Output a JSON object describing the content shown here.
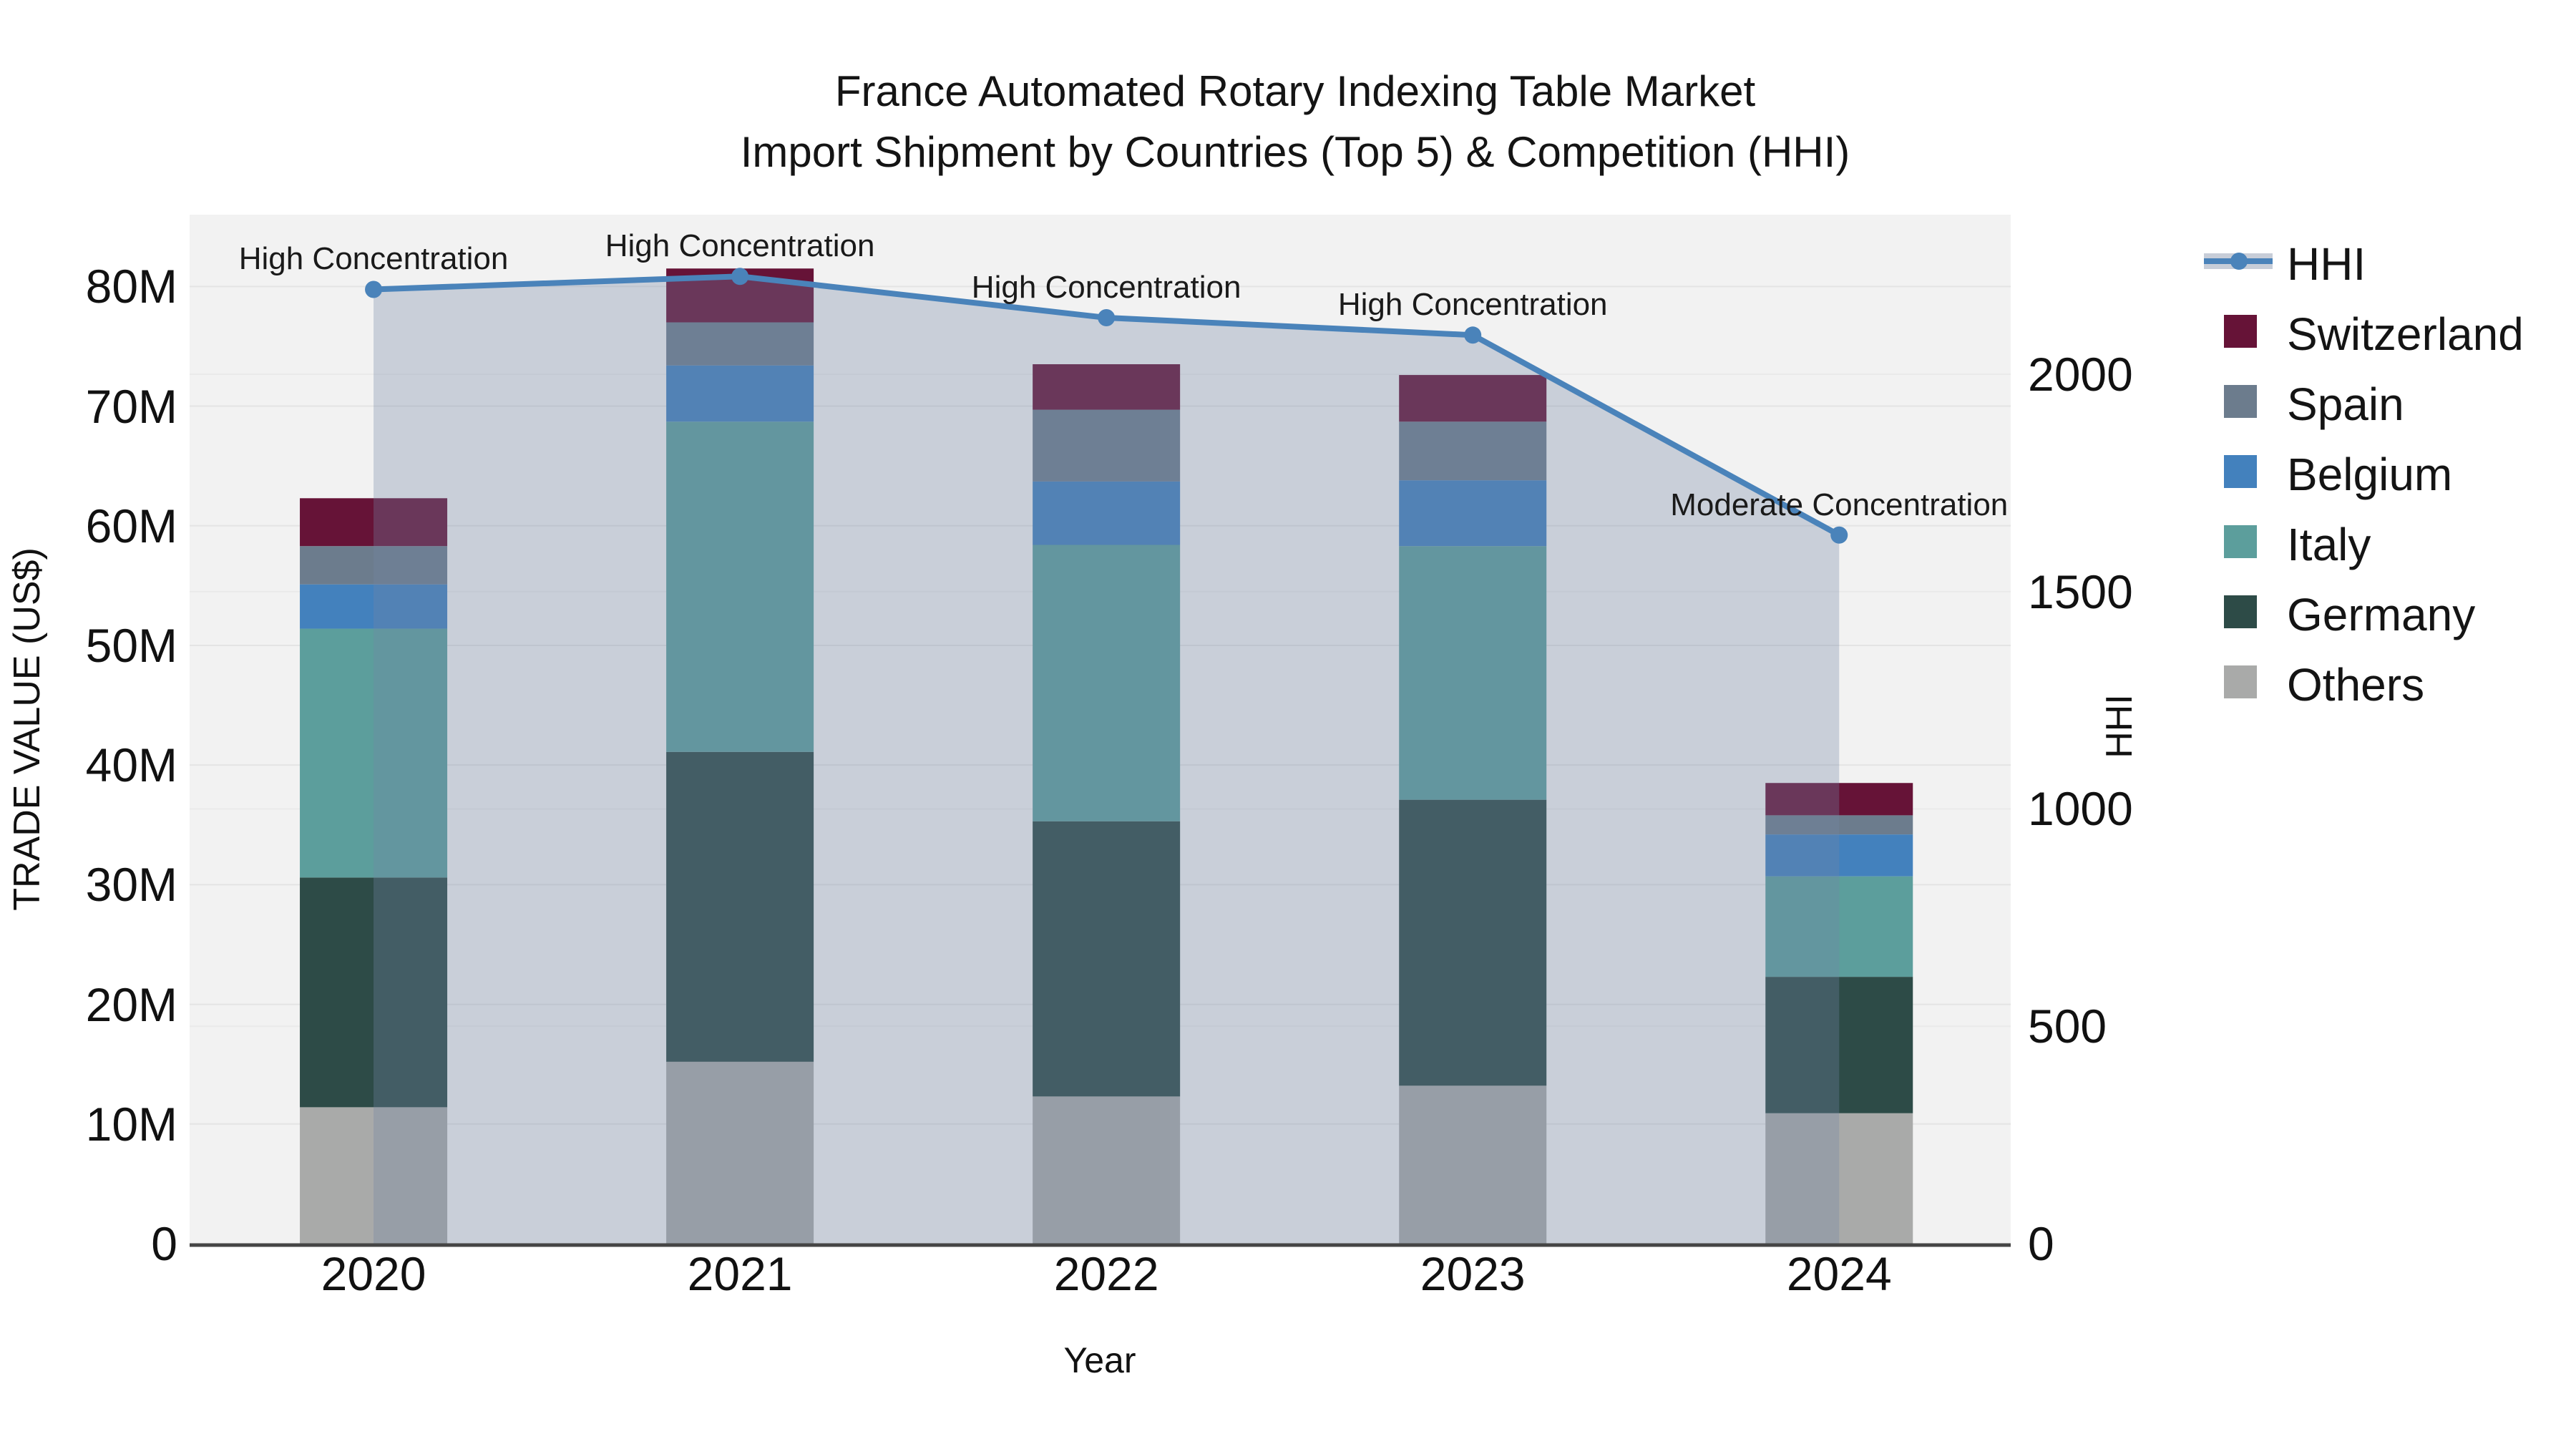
{
  "title": {
    "line1": "France Automated Rotary Indexing Table Market",
    "line2": "Import Shipment by Countries (Top 5) & Competition (HHI)"
  },
  "axes": {
    "x": {
      "title": "Year",
      "categories": [
        "2020",
        "2021",
        "2022",
        "2023",
        "2024"
      ]
    },
    "y_left": {
      "title": "TRADE VALUE (US$)",
      "tick_labels": [
        "0",
        "10M",
        "20M",
        "30M",
        "40M",
        "50M",
        "60M",
        "70M",
        "80M"
      ],
      "tick_values": [
        0,
        10,
        20,
        30,
        40,
        50,
        60,
        70,
        80
      ],
      "range": [
        0,
        86
      ]
    },
    "y_right": {
      "title": "HHI",
      "tick_labels": [
        "0",
        "500",
        "1000",
        "1500",
        "2000"
      ],
      "tick_values": [
        0,
        500,
        1000,
        1500,
        2000
      ],
      "range": [
        0,
        2367
      ]
    }
  },
  "legend": {
    "items": [
      {
        "label": "HHI",
        "type": "line",
        "color": "#4a83ba"
      },
      {
        "label": "Switzerland",
        "type": "swatch",
        "color": "#661337"
      },
      {
        "label": "Spain",
        "type": "swatch",
        "color": "#6c7c8d"
      },
      {
        "label": "Belgium",
        "type": "swatch",
        "color": "#4381bd"
      },
      {
        "label": "Italy",
        "type": "swatch",
        "color": "#5c9e9c"
      },
      {
        "label": "Germany",
        "type": "swatch",
        "color": "#2d4b47"
      },
      {
        "label": "Others",
        "type": "swatch",
        "color": "#a9aaa9"
      }
    ]
  },
  "chart_data": {
    "type": "bar+line",
    "categories": [
      "2020",
      "2021",
      "2022",
      "2023",
      "2024"
    ],
    "bar_unit": "USD millions",
    "stack_order_bottom_to_top": [
      "Others",
      "Germany",
      "Italy",
      "Belgium",
      "Spain",
      "Switzerland"
    ],
    "series": [
      {
        "name": "Others",
        "color": "#a9aaa9",
        "values": [
          11.4,
          15.2,
          12.3,
          13.2,
          10.9
        ]
      },
      {
        "name": "Germany",
        "color": "#2d4b47",
        "values": [
          19.2,
          25.9,
          23.0,
          23.9,
          11.4
        ]
      },
      {
        "name": "Italy",
        "color": "#5c9e9c",
        "values": [
          20.8,
          27.6,
          23.1,
          21.2,
          8.4
        ]
      },
      {
        "name": "Belgium",
        "color": "#4381bd",
        "values": [
          3.7,
          4.7,
          5.3,
          5.5,
          3.5
        ]
      },
      {
        "name": "Spain",
        "color": "#6c7c8d",
        "values": [
          3.2,
          3.6,
          6.0,
          4.9,
          1.6
        ]
      },
      {
        "name": "Switzerland",
        "color": "#661337",
        "values": [
          4.0,
          4.5,
          3.8,
          3.9,
          2.7
        ]
      }
    ],
    "bar_totals": [
      62.3,
      81.5,
      73.5,
      72.6,
      38.5
    ],
    "line_series": {
      "name": "HHI",
      "axis": "right",
      "color": "#4a83ba",
      "fill": "rgba(115,135,165,0.32)",
      "values": [
        2195,
        2225,
        2130,
        2090,
        1630
      ]
    },
    "annotations": [
      {
        "category": "2020",
        "text": "High Concentration"
      },
      {
        "category": "2021",
        "text": "High Concentration"
      },
      {
        "category": "2022",
        "text": "High Concentration"
      },
      {
        "category": "2023",
        "text": "High Concentration"
      },
      {
        "category": "2024",
        "text": "Moderate Concentration"
      }
    ],
    "grid": true,
    "legend_position": "right",
    "ylim_left": [
      0,
      86
    ],
    "ylim_right": [
      0,
      2367
    ]
  }
}
